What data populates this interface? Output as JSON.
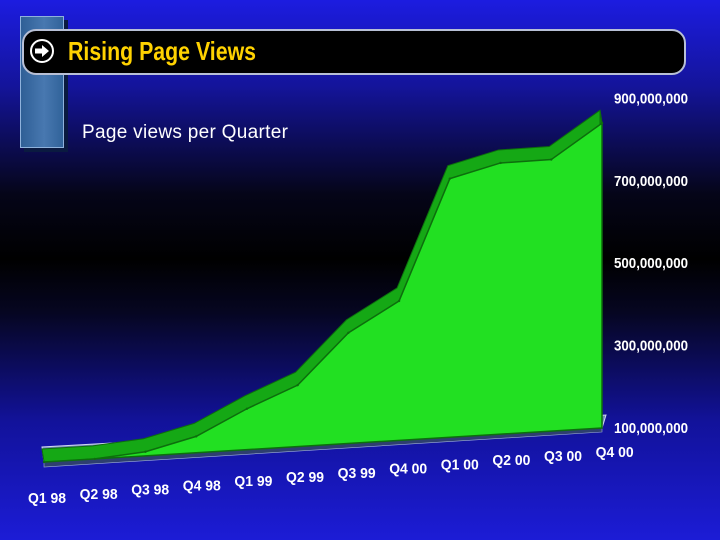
{
  "header": {
    "title": "Rising Page Views",
    "icon": "arrow-right-circle-icon"
  },
  "colors": {
    "title": "#ffd200",
    "area_fill": "#22e022",
    "area_edge": "#0d6e0d",
    "floor": "#6f87b6"
  },
  "chart_data": {
    "type": "area",
    "title": "Page views per Quarter",
    "xlabel": "",
    "ylabel": "",
    "categories": [
      "Q1 98",
      "Q2 98",
      "Q3 98",
      "Q4 98",
      "Q1 99",
      "Q2 99",
      "Q3 99",
      "Q4 00",
      "Q1 00",
      "Q2 00",
      "Q3 00",
      "Q4 00"
    ],
    "values": [
      100000000,
      100000000,
      110000000,
      140000000,
      200000000,
      250000000,
      370000000,
      440000000,
      730000000,
      760000000,
      760000000,
      840000000
    ],
    "y_ticks": [
      "100,000,000",
      "300,000,000",
      "500,000,000",
      "700,000,000",
      "900,000,000"
    ],
    "ylim": [
      100000000,
      900000000
    ],
    "grid": false,
    "legend": "none"
  }
}
